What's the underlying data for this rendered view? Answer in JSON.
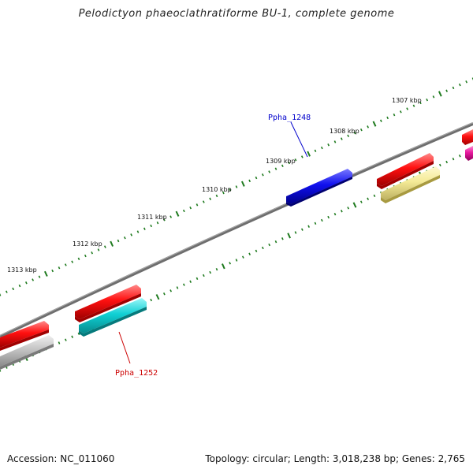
{
  "title": "Pelodictyon phaeoclathratiforme BU-1, complete genome",
  "footer": {
    "accession": "Accession: NC_011060",
    "summary": "Topology: circular; Length: 3,018,238 bp; Genes: 2,765"
  },
  "ticks": [
    {
      "label": "1307 kbp"
    },
    {
      "label": "1308 kbp"
    },
    {
      "label": "1309 kbp"
    },
    {
      "label": "1310 kbp"
    },
    {
      "label": "1311 kbp"
    },
    {
      "label": "1312 kbp"
    },
    {
      "label": "1313 kbp"
    }
  ],
  "genes": [
    {
      "label": "Ppha_1248",
      "color": "#0000cc"
    },
    {
      "label": "Ppha_1252",
      "color": "#cc0000"
    }
  ],
  "colors": {
    "backbone": "#777777",
    "tick": "#1e7a1e",
    "red": "#ee1111",
    "cyan": "#11c8cc",
    "gray": "#b0b0b0",
    "yellow": "#f2e68a",
    "blue": "#1a1ae6",
    "magenta": "#e0189a"
  }
}
